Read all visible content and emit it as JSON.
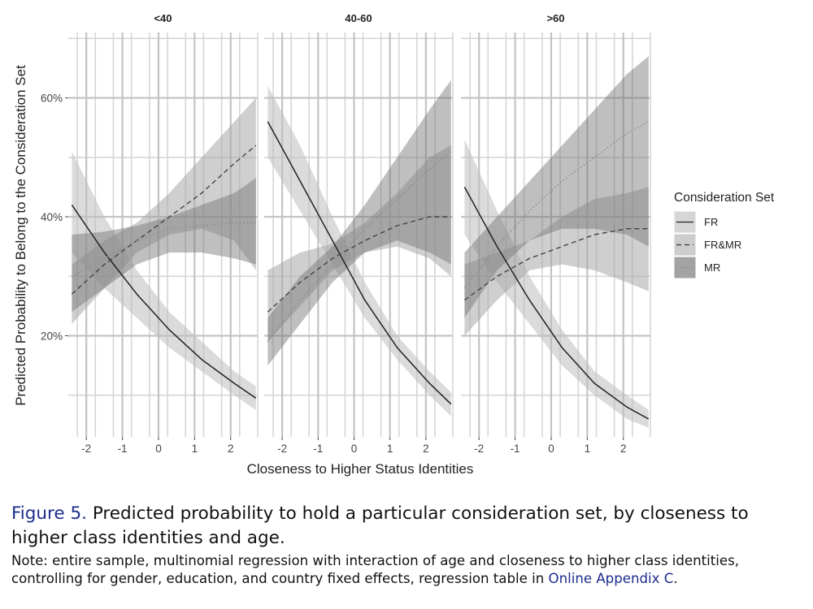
{
  "chart_data": {
    "type": "line",
    "ylabel": "Predicted Probability to Belong to the Consideration Set",
    "xlabel": "Closeness to Higher Status Identities",
    "x_ticks": [
      -2,
      -1,
      0,
      1,
      2
    ],
    "x_tick_labels": [
      "-2",
      "-1",
      "0",
      "1",
      "2"
    ],
    "y_ticks": [
      0.2,
      0.4,
      0.6
    ],
    "y_tick_labels": [
      "20%",
      "40%",
      "60%"
    ],
    "xlim": [
      -2.5,
      2.75
    ],
    "ylim": [
      0.03,
      0.71
    ],
    "legend": {
      "title": "Consideration Set",
      "entries": [
        "FR",
        "FR&MR",
        "MR"
      ],
      "position": "right"
    },
    "x": [
      -2.4,
      -1.5,
      -0.6,
      0.3,
      1.2,
      2.1,
      2.7
    ],
    "panels": [
      {
        "title": "<40",
        "series": [
          {
            "name": "FR",
            "values": [
              0.42,
              0.34,
              0.27,
              0.21,
              0.16,
              0.12,
              0.095
            ],
            "lower": [
              0.34,
              0.28,
              0.23,
              0.18,
              0.14,
              0.1,
              0.075
            ],
            "upper": [
              0.51,
              0.4,
              0.31,
              0.24,
              0.19,
              0.14,
              0.115
            ]
          },
          {
            "name": "FR&MR",
            "values": [
              0.27,
              0.32,
              0.36,
              0.4,
              0.44,
              0.49,
              0.52
            ],
            "lower": [
              0.22,
              0.28,
              0.34,
              0.37,
              0.38,
              0.36,
              0.31
            ],
            "upper": [
              0.32,
              0.36,
              0.39,
              0.44,
              0.5,
              0.56,
              0.6
            ]
          },
          {
            "name": "MR",
            "values": [
              0.3,
              0.33,
              0.36,
              0.38,
              0.385,
              0.39,
              0.39
            ],
            "lower": [
              0.24,
              0.28,
              0.32,
              0.34,
              0.34,
              0.33,
              0.32
            ],
            "upper": [
              0.37,
              0.375,
              0.385,
              0.4,
              0.42,
              0.44,
              0.465
            ]
          }
        ]
      },
      {
        "title": "40-60",
        "series": [
          {
            "name": "FR",
            "values": [
              0.56,
              0.46,
              0.36,
              0.26,
              0.18,
              0.12,
              0.085
            ],
            "lower": [
              0.5,
              0.41,
              0.32,
              0.23,
              0.16,
              0.1,
              0.065
            ],
            "upper": [
              0.62,
              0.52,
              0.4,
              0.29,
              0.2,
              0.14,
              0.105
            ]
          },
          {
            "name": "FR&MR",
            "values": [
              0.24,
              0.29,
              0.33,
              0.36,
              0.385,
              0.4,
              0.4
            ],
            "lower": [
              0.19,
              0.25,
              0.31,
              0.34,
              0.35,
              0.33,
              0.3
            ],
            "upper": [
              0.31,
              0.34,
              0.355,
              0.39,
              0.44,
              0.5,
              0.52
            ]
          },
          {
            "name": "MR",
            "values": [
              0.19,
              0.26,
              0.32,
              0.38,
              0.43,
              0.48,
              0.51
            ],
            "lower": [
              0.15,
              0.22,
              0.29,
              0.34,
              0.36,
              0.34,
              0.32
            ],
            "upper": [
              0.23,
              0.3,
              0.35,
              0.42,
              0.5,
              0.58,
              0.63
            ]
          }
        ]
      },
      {
        "title": ">60",
        "series": [
          {
            "name": "FR",
            "values": [
              0.45,
              0.35,
              0.26,
              0.18,
              0.12,
              0.08,
              0.06
            ],
            "lower": [
              0.37,
              0.29,
              0.22,
              0.15,
              0.1,
              0.06,
              0.045
            ],
            "upper": [
              0.53,
              0.41,
              0.3,
              0.21,
              0.14,
              0.1,
              0.075
            ]
          },
          {
            "name": "FR&MR",
            "values": [
              0.26,
              0.3,
              0.33,
              0.35,
              0.37,
              0.38,
              0.38
            ],
            "lower": [
              0.2,
              0.26,
              0.31,
              0.32,
              0.31,
              0.29,
              0.275
            ],
            "upper": [
              0.32,
              0.34,
              0.36,
              0.4,
              0.43,
              0.44,
              0.45
            ]
          },
          {
            "name": "MR",
            "values": [
              0.28,
              0.35,
              0.41,
              0.46,
              0.5,
              0.54,
              0.56
            ],
            "lower": [
              0.23,
              0.31,
              0.36,
              0.38,
              0.38,
              0.37,
              0.35
            ],
            "upper": [
              0.34,
              0.4,
              0.46,
              0.52,
              0.58,
              0.64,
              0.67
            ]
          }
        ]
      }
    ]
  },
  "caption": {
    "figure_label": "Figure 5.",
    "title": "Predicted probability to hold a particular consideration set, by closeness to higher class identities and age.",
    "note_text": "Note: entire sample, multinomial regression with interaction of age and closeness to higher class identities, controlling for gender, education, and country fixed effects, regression table in ",
    "note_link": "Online Appendix C",
    "note_end": "."
  }
}
